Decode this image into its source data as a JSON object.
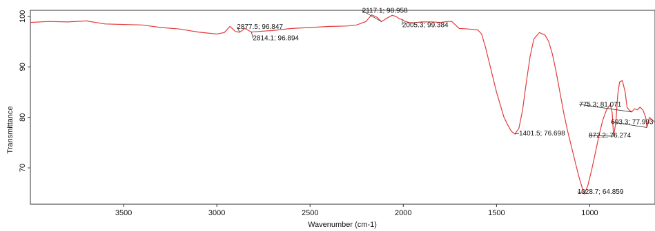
{
  "chart_data": {
    "type": "line",
    "title": "",
    "xlabel": "Wavenumber (cm-1)",
    "ylabel": "Transmittance",
    "xlim": [
      4000,
      650
    ],
    "x_reversed": true,
    "ylim": [
      62.8,
      101.2
    ],
    "x_ticks": [
      3500,
      3000,
      2500,
      2000,
      1500,
      1000
    ],
    "y_ticks": [
      70,
      80,
      90,
      100
    ],
    "grid": false,
    "legend": "none",
    "series": [
      {
        "color": "#e23b3b",
        "x": [
          4000,
          3900,
          3800,
          3700,
          3600,
          3500,
          3400,
          3300,
          3200,
          3100,
          3000,
          2960,
          2930,
          2900,
          2877.5,
          2850,
          2814.1,
          2780,
          2700,
          2600,
          2500,
          2400,
          2300,
          2250,
          2200,
          2170,
          2140,
          2117.1,
          2090,
          2060,
          2040,
          2020,
          2005.3,
          1990,
          1970,
          1950,
          1900,
          1850,
          1800,
          1760,
          1740,
          1720,
          1700,
          1650,
          1600,
          1580,
          1560,
          1540,
          1520,
          1500,
          1480,
          1460,
          1440,
          1420,
          1401.5,
          1380,
          1360,
          1340,
          1320,
          1300,
          1270,
          1240,
          1220,
          1200,
          1180,
          1160,
          1140,
          1120,
          1100,
          1080,
          1060,
          1040,
          1028.7,
          1010,
          990,
          970,
          950,
          930,
          910,
          890,
          880,
          872.2,
          860,
          850,
          840,
          825,
          810,
          800,
          790,
          775.3,
          760,
          745,
          730,
          715,
          700,
          693.3,
          680,
          665,
          650
        ],
        "values": [
          98.8,
          99.0,
          98.9,
          99.1,
          98.5,
          98.4,
          98.3,
          97.8,
          97.5,
          96.9,
          96.5,
          96.8,
          98.0,
          97.0,
          96.85,
          97.6,
          96.9,
          97.0,
          97.2,
          97.6,
          97.8,
          98.0,
          98.1,
          98.3,
          99.0,
          100.3,
          99.8,
          98.96,
          99.6,
          100.2,
          100.0,
          99.5,
          99.38,
          99.0,
          98.8,
          98.7,
          98.9,
          98.9,
          98.8,
          99.0,
          99.0,
          98.3,
          97.6,
          97.5,
          97.3,
          96.5,
          94.0,
          91.0,
          88.0,
          85.0,
          82.5,
          80.0,
          78.5,
          77.2,
          76.7,
          77.8,
          81.5,
          87.0,
          92.0,
          95.5,
          96.8,
          96.3,
          95.0,
          92.5,
          89.0,
          85.0,
          81.0,
          77.5,
          74.5,
          71.5,
          68.5,
          66.0,
          64.86,
          66.5,
          69.5,
          73.0,
          76.5,
          79.5,
          81.5,
          82.5,
          81.0,
          76.27,
          79.0,
          84.5,
          87.0,
          87.3,
          85.0,
          82.0,
          81.5,
          81.07,
          81.7,
          81.5,
          82.0,
          81.5,
          80.0,
          77.99,
          80.0,
          79.5,
          79.0
        ]
      }
    ],
    "annotations": [
      {
        "text": "2877.5; 96.847",
        "x": 2877.5,
        "y": 96.847
      },
      {
        "text": "2814.1; 96.894",
        "x": 2814.1,
        "y": 96.894
      },
      {
        "text": "2117.1; 98.958",
        "x": 2117.1,
        "y": 98.958
      },
      {
        "text": "2005.3; 99.384",
        "x": 2005.3,
        "y": 99.384
      },
      {
        "text": "1401.5; 76.698",
        "x": 1401.5,
        "y": 76.698
      },
      {
        "text": "1028.7; 64.859",
        "x": 1028.7,
        "y": 64.859
      },
      {
        "text": "872.2; 76.274",
        "x": 872.2,
        "y": 76.274
      },
      {
        "text": "775.3; 81.071",
        "x": 775.3,
        "y": 81.071
      },
      {
        "text": "693.3; 77.993",
        "x": 693.3,
        "y": 77.993
      }
    ]
  }
}
